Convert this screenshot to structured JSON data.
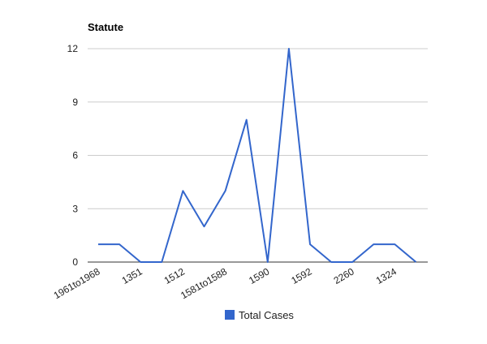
{
  "chart_data": {
    "type": "line",
    "title": "Statute",
    "xlabel": "",
    "ylabel": "",
    "ylim": [
      0,
      12
    ],
    "yticks": [
      0,
      3,
      6,
      9,
      12
    ],
    "grid": true,
    "legend_position": "bottom",
    "categories": [
      "1961to1968",
      "",
      "1351",
      "",
      "1512",
      "",
      "1581to1588",
      "",
      "1590",
      "",
      "1592",
      "",
      "2260",
      "",
      "1324",
      ""
    ],
    "series": [
      {
        "name": "Total Cases",
        "color": "#3366cc",
        "values": [
          1,
          1,
          0,
          0,
          4,
          2,
          4,
          8,
          0,
          12,
          1,
          0,
          0,
          1,
          1,
          0
        ]
      }
    ]
  }
}
